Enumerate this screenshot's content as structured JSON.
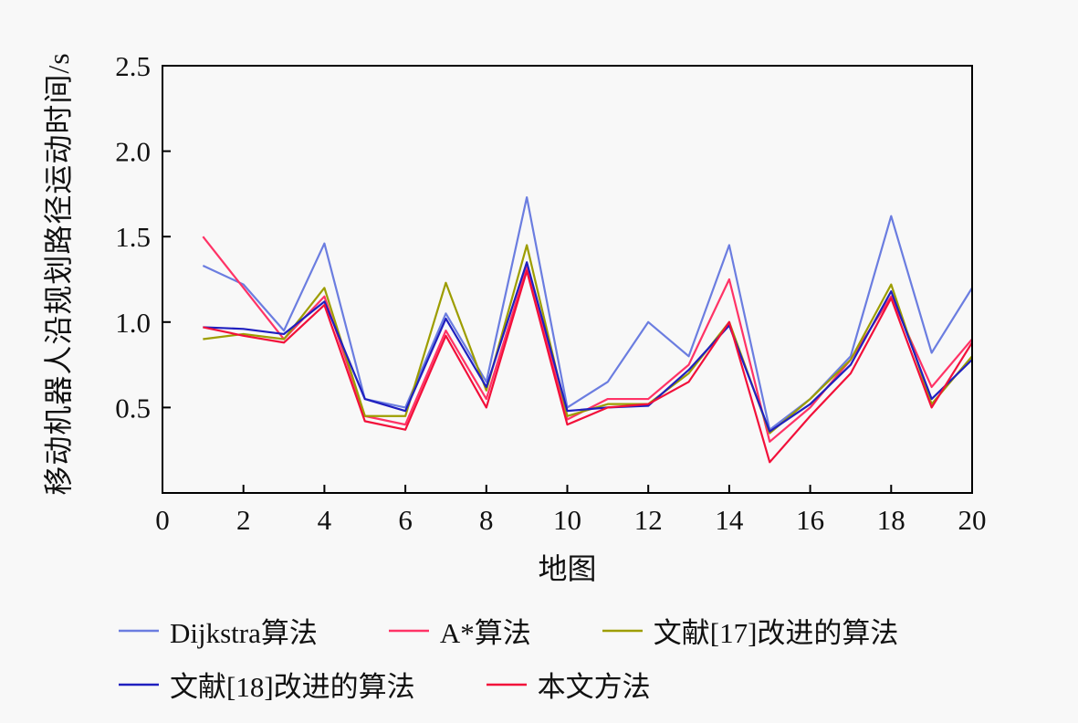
{
  "chart_data": {
    "type": "line",
    "title": "",
    "xlabel": "地图",
    "ylabel": "移动机器人沿规划路径运动时间/s",
    "xlim": [
      0,
      20
    ],
    "ylim": [
      0,
      2.5
    ],
    "x_ticks": [
      0,
      2,
      4,
      6,
      8,
      10,
      12,
      14,
      16,
      18,
      20
    ],
    "x_tick_labels": [
      "0",
      "2",
      "4",
      "6",
      "8",
      "10",
      "12",
      "14",
      "16",
      "18",
      "20"
    ],
    "y_ticks": [
      0.5,
      1.0,
      1.5,
      2.0,
      2.5
    ],
    "y_tick_labels": [
      "0.5",
      "1.0",
      "1.5",
      "2.0",
      "2.5"
    ],
    "x": [
      1,
      2,
      3,
      4,
      5,
      6,
      7,
      8,
      9,
      10,
      11,
      12,
      13,
      14,
      15,
      16,
      17,
      18,
      19,
      20
    ],
    "grid": false,
    "legend_position": "below",
    "series": [
      {
        "name": "Dijkstra算法",
        "color": "#6b7de0",
        "values": [
          1.33,
          1.22,
          0.95,
          1.46,
          0.55,
          0.5,
          1.05,
          0.65,
          1.73,
          0.5,
          0.65,
          1.0,
          0.8,
          1.45,
          0.37,
          0.55,
          0.8,
          1.62,
          0.82,
          1.2
        ]
      },
      {
        "name": "A*算法",
        "color": "#ff3366",
        "values": [
          1.5,
          1.2,
          0.9,
          1.15,
          0.45,
          0.4,
          0.95,
          0.55,
          1.32,
          0.43,
          0.55,
          0.55,
          0.75,
          1.25,
          0.3,
          0.5,
          0.78,
          1.15,
          0.62,
          0.9
        ]
      },
      {
        "name": "文献[17]改进的算法",
        "color": "#9d9d00",
        "values": [
          0.9,
          0.93,
          0.9,
          1.2,
          0.45,
          0.45,
          1.23,
          0.6,
          1.45,
          0.45,
          0.52,
          0.52,
          0.7,
          1.0,
          0.35,
          0.55,
          0.78,
          1.22,
          0.52,
          0.8
        ]
      },
      {
        "name": "文献[18]改进的算法",
        "color": "#1f1fbf",
        "values": [
          0.97,
          0.96,
          0.93,
          1.12,
          0.55,
          0.48,
          1.02,
          0.62,
          1.35,
          0.48,
          0.5,
          0.51,
          0.72,
          0.98,
          0.36,
          0.52,
          0.75,
          1.18,
          0.55,
          0.78
        ]
      },
      {
        "name": "本文方法",
        "color": "#f2103a",
        "values": [
          0.97,
          0.92,
          0.88,
          1.1,
          0.42,
          0.37,
          0.92,
          0.5,
          1.3,
          0.4,
          0.5,
          0.52,
          0.65,
          1.0,
          0.18,
          0.45,
          0.7,
          1.14,
          0.5,
          0.88
        ]
      }
    ]
  }
}
